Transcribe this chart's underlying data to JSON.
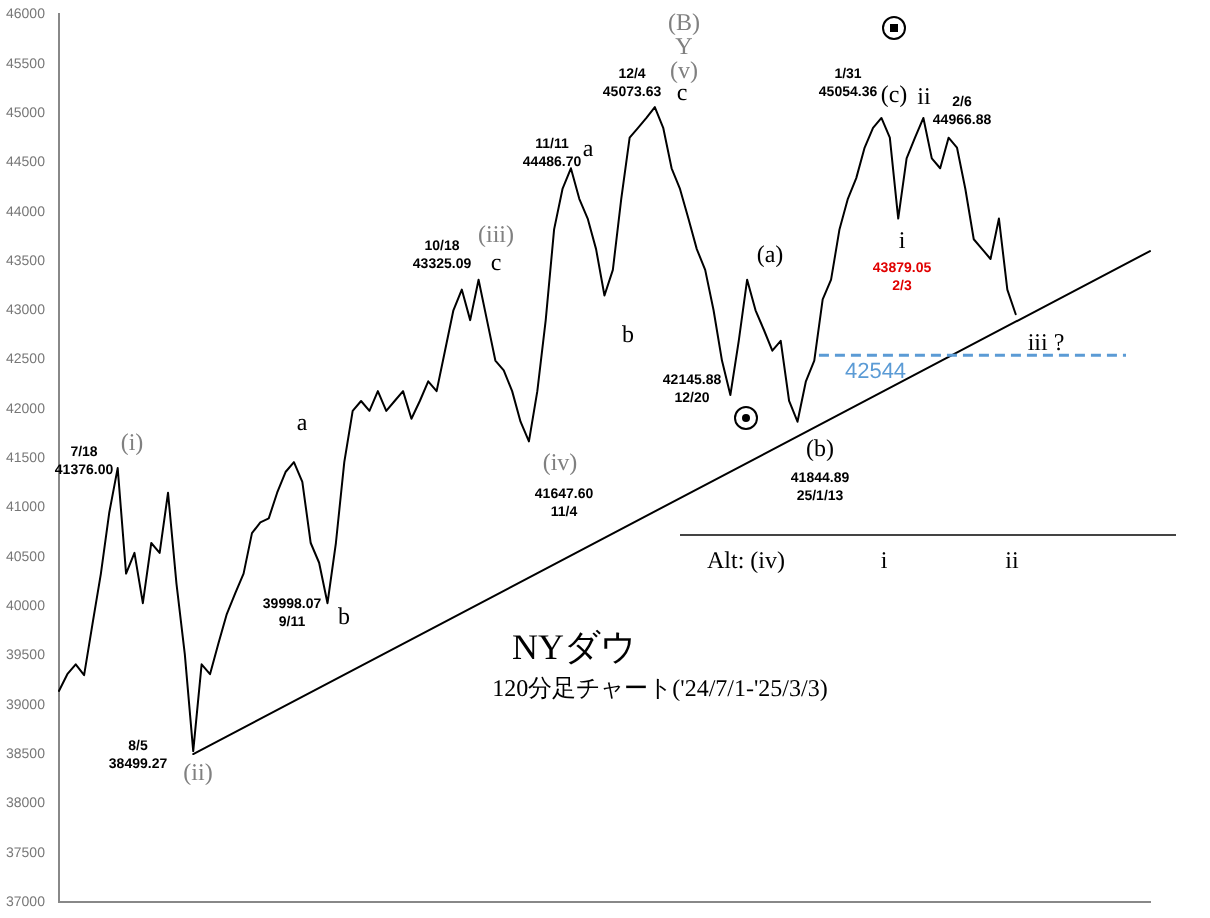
{
  "chart_data": {
    "type": "line",
    "title": "NYダウ",
    "subtitle": "120分足チャート('24/7/1-'25/3/3)",
    "categories": [
      null,
      null,
      null,
      null,
      null,
      null,
      null,
      null,
      null,
      null,
      null,
      null,
      null,
      null,
      null,
      null,
      null,
      null,
      null,
      null,
      null,
      null,
      null,
      null,
      null,
      null,
      null,
      null,
      null,
      null,
      null,
      null,
      null,
      null,
      null,
      null,
      null,
      null,
      null,
      null,
      null,
      null,
      null,
      null,
      null,
      null,
      null,
      null,
      null,
      null,
      null,
      null,
      null,
      null,
      null,
      null,
      null,
      null,
      null,
      null,
      null,
      null,
      null,
      null,
      null,
      null,
      null,
      null,
      null,
      null,
      null,
      null,
      null,
      null,
      null,
      null,
      null,
      null,
      null,
      null,
      null,
      null,
      null,
      null,
      null,
      null,
      null,
      null,
      null,
      null,
      null,
      null,
      null,
      null,
      null,
      null,
      null,
      null,
      null,
      null,
      null,
      null,
      null,
      null,
      null,
      null,
      null,
      null,
      null,
      null,
      null,
      null,
      null,
      null,
      null,
      null,
      null,
      null,
      null,
      null,
      null,
      null,
      null,
      null,
      null,
      null,
      null,
      null,
      null,
      null,
      null
    ],
    "series": [
      {
        "color": "#000000",
        "values": [
          39140,
          39310,
          39410,
          39300,
          39820,
          40330,
          40950,
          41400,
          40330,
          40540,
          40030,
          40640,
          40540,
          41150,
          40230,
          39510,
          38530,
          39410,
          39310,
          39620,
          39920,
          40130,
          40330,
          40740,
          40850,
          40890,
          41150,
          41360,
          41460,
          41260,
          40640,
          40440,
          40030,
          40640,
          41460,
          41980,
          42080,
          41980,
          42180,
          41980,
          42080,
          42180,
          41900,
          42080,
          42280,
          42180,
          42590,
          43000,
          43210,
          42900,
          43310,
          42900,
          42490,
          42390,
          42180,
          41870,
          41670,
          42180,
          42900,
          43820,
          44230,
          44440,
          44130,
          43930,
          43620,
          43150,
          43410,
          44130,
          44750,
          44850,
          44950,
          45060,
          44850,
          44440,
          44230,
          43930,
          43620,
          43410,
          43000,
          42490,
          42140,
          42690,
          43310,
          43000,
          42800,
          42590,
          42690,
          42080,
          41870,
          42280,
          42490,
          43110,
          43310,
          43820,
          44130,
          44340,
          44650,
          44850,
          44950,
          44750,
          43930,
          44540,
          44750,
          44950,
          44540,
          44440,
          44750,
          44650,
          44230,
          43720,
          43620,
          43520,
          43930,
          43210,
          42960,
          null,
          null,
          null,
          null,
          null,
          null,
          null,
          null,
          null,
          null,
          null,
          null,
          null,
          null,
          null,
          null
        ]
      },
      {
        "type": "line",
        "color": "#000000",
        "values": [
          null,
          null,
          null,
          null,
          null,
          null,
          null,
          null,
          null,
          null,
          null,
          null,
          null,
          null,
          null,
          null,
          38500,
          null,
          null,
          null,
          null,
          null,
          null,
          null,
          null,
          null,
          null,
          null,
          null,
          null,
          null,
          null,
          null,
          null,
          null,
          null,
          null,
          null,
          null,
          null,
          null,
          null,
          null,
          null,
          null,
          null,
          null,
          null,
          null,
          null,
          null,
          null,
          null,
          null,
          null,
          null,
          null,
          null,
          null,
          null,
          null,
          null,
          null,
          null,
          null,
          null,
          null,
          null,
          null,
          null,
          null,
          null,
          null,
          null,
          null,
          null,
          null,
          null,
          null,
          null,
          null,
          null,
          null,
          null,
          null,
          null,
          null,
          null,
          null,
          null,
          null,
          null,
          null,
          null,
          null,
          null,
          null,
          null,
          null,
          null,
          null,
          null,
          null,
          null,
          null,
          null,
          null,
          null,
          null,
          null,
          null,
          null,
          null,
          null,
          null,
          null,
          null,
          null,
          null,
          null,
          null,
          null,
          null,
          null,
          null,
          null,
          null,
          null,
          null,
          null,
          43600
        ]
      }
    ],
    "ylim": [
      37000,
      46000
    ],
    "yticks": [
      37000,
      37500,
      38000,
      38500,
      39000,
      39500,
      40000,
      40500,
      41000,
      41500,
      42000,
      42500,
      43000,
      43500,
      44000,
      44500,
      45000,
      45500,
      46000
    ],
    "tick_labels": "y",
    "marker": "none",
    "ref_lines": [
      {
        "axis": "y",
        "value": 42544,
        "label": "42544",
        "color": "#5b9bd5",
        "line_style": "dashed"
      }
    ],
    "annotations": [
      "7/18\n41376.00",
      "(i)",
      "(ii)",
      "8/5\n38499.27",
      "a",
      "39998.07\n9/11",
      "b",
      "10/18\n43325.09",
      "(iii)",
      "c",
      "(iv)",
      "41647.60\n11/4",
      "11/11\n44486.70",
      "a",
      "b",
      "12/4\n45073.63",
      "(B)",
      "Y",
      "(v)",
      "c",
      "(a)",
      "42145.88\n12/20",
      "(b)",
      "41844.89\n25/1/13",
      "1/31\n45054.36",
      "(c)",
      "ii",
      "2/6\n44966.88",
      "i",
      "43879.05\n2/3",
      "iii ?",
      "Alt: (iv)",
      "i",
      "ii"
    ]
  }
}
